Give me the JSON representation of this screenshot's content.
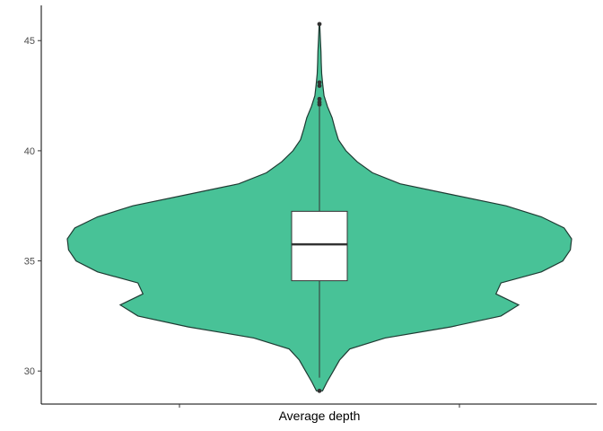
{
  "chart_data": {
    "type": "violin",
    "title": "",
    "xlabel": "",
    "ylabel": "",
    "categories": [
      "Average depth"
    ],
    "ylim": [
      28.5,
      46.6
    ],
    "yticks": [
      30,
      35,
      40,
      45
    ],
    "ytick_labels": [
      "30",
      "35",
      "40",
      "45"
    ],
    "grid": false,
    "legend": "none",
    "colors": {
      "fill": "#48C297",
      "outline": "#1F3B33",
      "box_fill": "#FFFFFF",
      "box_line": "#333333"
    },
    "box": {
      "min": 29.7,
      "q1": 34.1,
      "median": 35.75,
      "q3": 37.25,
      "max": 42.0
    },
    "outliers": [
      29.1,
      42.1,
      42.2,
      42.35,
      42.95,
      43.1,
      45.75
    ],
    "density_profile": [
      [
        29.1,
        0.012
      ],
      [
        29.5,
        0.03
      ],
      [
        30.0,
        0.055
      ],
      [
        30.5,
        0.08
      ],
      [
        31.0,
        0.12
      ],
      [
        31.5,
        0.26
      ],
      [
        32.0,
        0.52
      ],
      [
        32.5,
        0.72
      ],
      [
        33.0,
        0.79
      ],
      [
        33.5,
        0.7
      ],
      [
        34.0,
        0.72
      ],
      [
        34.5,
        0.88
      ],
      [
        35.0,
        0.965
      ],
      [
        35.5,
        0.995
      ],
      [
        36.0,
        1.0
      ],
      [
        36.5,
        0.97
      ],
      [
        37.0,
        0.88
      ],
      [
        37.5,
        0.74
      ],
      [
        38.0,
        0.53
      ],
      [
        38.5,
        0.32
      ],
      [
        39.0,
        0.21
      ],
      [
        39.5,
        0.15
      ],
      [
        40.0,
        0.105
      ],
      [
        40.5,
        0.075
      ],
      [
        41.0,
        0.062
      ],
      [
        41.5,
        0.05
      ],
      [
        42.0,
        0.032
      ],
      [
        42.5,
        0.018
      ],
      [
        43.0,
        0.013
      ],
      [
        43.5,
        0.009
      ],
      [
        44.0,
        0.007
      ],
      [
        44.5,
        0.006
      ],
      [
        45.0,
        0.004
      ],
      [
        45.75,
        0.001
      ]
    ]
  }
}
